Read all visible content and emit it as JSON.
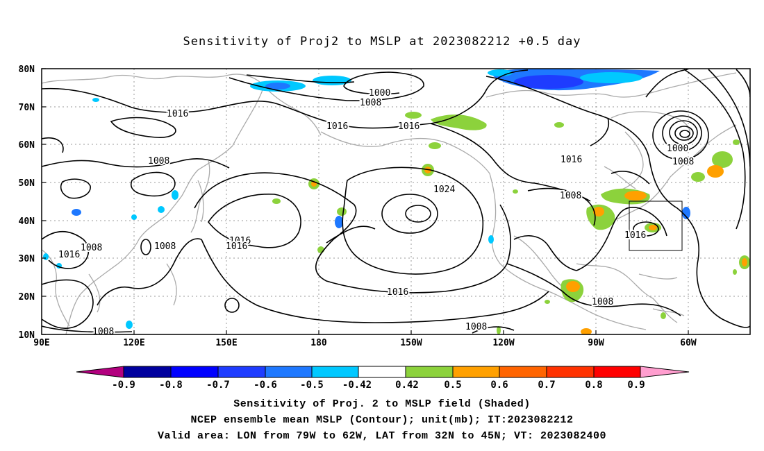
{
  "map": {
    "title": "Sensitivity of Proj2 to MSLP at 2023082212 +0.5 day",
    "lat_labels": [
      "80N",
      "70N",
      "60N",
      "50N",
      "40N",
      "30N",
      "20N",
      "10N"
    ],
    "lon_labels": [
      "90E",
      "120E",
      "150E",
      "180",
      "150W",
      "120W",
      "90W",
      "60W"
    ],
    "contour_labels": [
      {
        "text": "1000",
        "id": "arctic-low"
      },
      {
        "text": "1008",
        "id": "arctic-ring"
      },
      {
        "text": "1016",
        "id": "siberia"
      },
      {
        "text": "1016",
        "id": "bering"
      },
      {
        "text": "1016",
        "id": "gulf-alaska"
      },
      {
        "text": "1000",
        "id": "labrador-low"
      },
      {
        "text": "1008",
        "id": "labrador-ring"
      },
      {
        "text": "1016",
        "id": "canada"
      },
      {
        "text": "1008",
        "id": "mongolia"
      },
      {
        "text": "1024",
        "id": "pacific-high"
      },
      {
        "text": "1008",
        "id": "great-plains"
      },
      {
        "text": "1016",
        "id": "west-pacific-a"
      },
      {
        "text": "1016",
        "id": "west-pacific-b"
      },
      {
        "text": "1008",
        "id": "china"
      },
      {
        "text": "1016",
        "id": "india-a"
      },
      {
        "text": "1008",
        "id": "india-b"
      },
      {
        "text": "1016",
        "id": "east-us"
      },
      {
        "text": "1016",
        "id": "subtropical-pacific"
      },
      {
        "text": "1008",
        "id": "gulf-mexico"
      },
      {
        "text": "1008",
        "id": "east-pacific"
      },
      {
        "text": "1008",
        "id": "south-china-sea"
      }
    ],
    "colorbar": {
      "labels": [
        "-0.9",
        "-0.8",
        "-0.7",
        "-0.6",
        "-0.5",
        "-0.42",
        "0.42",
        "0.5",
        "0.6",
        "0.7",
        "0.8",
        "0.9"
      ],
      "colors": [
        "#b3007f",
        "#00009e",
        "#0000ff",
        "#1e3cff",
        "#1e78ff",
        "#00c8ff",
        "#ffffff",
        "#8cd23c",
        "#ffa000",
        "#ff6400",
        "#ff3200",
        "#ff0000",
        "#ff9ecf"
      ]
    },
    "valid_box": {
      "lon_from": "79W",
      "lon_to": "62W",
      "lat_from": "32N",
      "lat_to": "45N"
    },
    "captions": [
      "Sensitivity of Proj. 2 to MSLP field (Shaded)",
      "NCEP ensemble mean MSLP (Contour); unit(mb); IT:2023082212",
      "Valid area: LON from 79W to 62W, LAT from 32N to 45N; VT: 2023082400"
    ]
  }
}
